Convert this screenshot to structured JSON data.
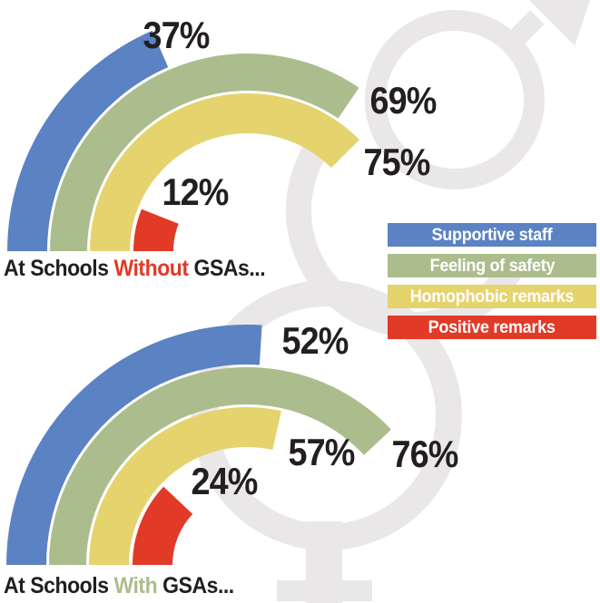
{
  "colors": {
    "blue": "#5b82c3",
    "green": "#acbd8d",
    "yellow": "#e5d36e",
    "red": "#e13a27",
    "symbol_gray": "#e9e7e8",
    "ink": "#231f20",
    "legend_text": "#ffffff",
    "canvas": "#ffffff"
  },
  "legend": {
    "items": [
      {
        "label": "Supportive staff",
        "color": "blue"
      },
      {
        "label": "Feeling of safety",
        "color": "green"
      },
      {
        "label": "Homophobic remarks",
        "color": "yellow"
      },
      {
        "label": "Positive remarks",
        "color": "red"
      }
    ]
  },
  "charts": [
    {
      "id": "without-gsas",
      "title": {
        "prefix": "At Schools ",
        "emphasis": "Without",
        "suffix": " GSAs...",
        "emphasis_color": "red"
      },
      "rings": [
        {
          "series": "Supportive staff",
          "color": "blue",
          "value": 37,
          "label": "37%"
        },
        {
          "series": "Feeling of safety",
          "color": "green",
          "value": 69,
          "label": "69%"
        },
        {
          "series": "Homophobic remarks",
          "color": "yellow",
          "value": 75,
          "label": "75%"
        },
        {
          "series": "Positive remarks",
          "color": "red",
          "value": 12,
          "label": "12%"
        }
      ]
    },
    {
      "id": "with-gsas",
      "title": {
        "prefix": "At Schools ",
        "emphasis": "With",
        "suffix": " GSAs...",
        "emphasis_color": "green"
      },
      "rings": [
        {
          "series": "Supportive staff",
          "color": "blue",
          "value": 52,
          "label": "52%"
        },
        {
          "series": "Feeling of safety",
          "color": "green",
          "value": 76,
          "label": "76%"
        },
        {
          "series": "Homophobic remarks",
          "color": "yellow",
          "value": 57,
          "label": "57%"
        },
        {
          "series": "Positive remarks",
          "color": "red",
          "value": 24,
          "label": "24%"
        }
      ]
    }
  ],
  "chart_data": [
    {
      "type": "bar",
      "variant": "semicircular radial gauge; arcs start at west (180°) and sweep clockwise; 100% = 180°; rings ordered outermost to innermost: blue, green, yellow, red",
      "title": "At Schools Without GSAs...",
      "categories": [
        "Supportive staff",
        "Feeling of safety",
        "Homophobic remarks",
        "Positive remarks"
      ],
      "values": [
        37,
        69,
        75,
        12
      ],
      "unit": "%",
      "data_labels": [
        "37%",
        "69%",
        "75%",
        "12%"
      ],
      "series_colors": [
        "#5b82c3",
        "#acbd8d",
        "#e5d36e",
        "#e13a27"
      ],
      "legend_position": "middle-right",
      "grid": false
    },
    {
      "type": "bar",
      "variant": "semicircular radial gauge; arcs start at west (180°) and sweep clockwise; 100% = 180°; rings ordered outermost to innermost: blue, green, yellow, red",
      "title": "At Schools With GSAs...",
      "categories": [
        "Supportive staff",
        "Feeling of safety",
        "Homophobic remarks",
        "Positive remarks"
      ],
      "values": [
        52,
        76,
        57,
        24
      ],
      "unit": "%",
      "data_labels": [
        "52%",
        "76%",
        "57%",
        "24%"
      ],
      "series_colors": [
        "#5b82c3",
        "#acbd8d",
        "#e5d36e",
        "#e13a27"
      ],
      "legend_position": "middle-right",
      "grid": false
    }
  ],
  "background": {
    "symbols": [
      "mars-symbol",
      "venus-symbol",
      "interlocked-ring"
    ]
  }
}
